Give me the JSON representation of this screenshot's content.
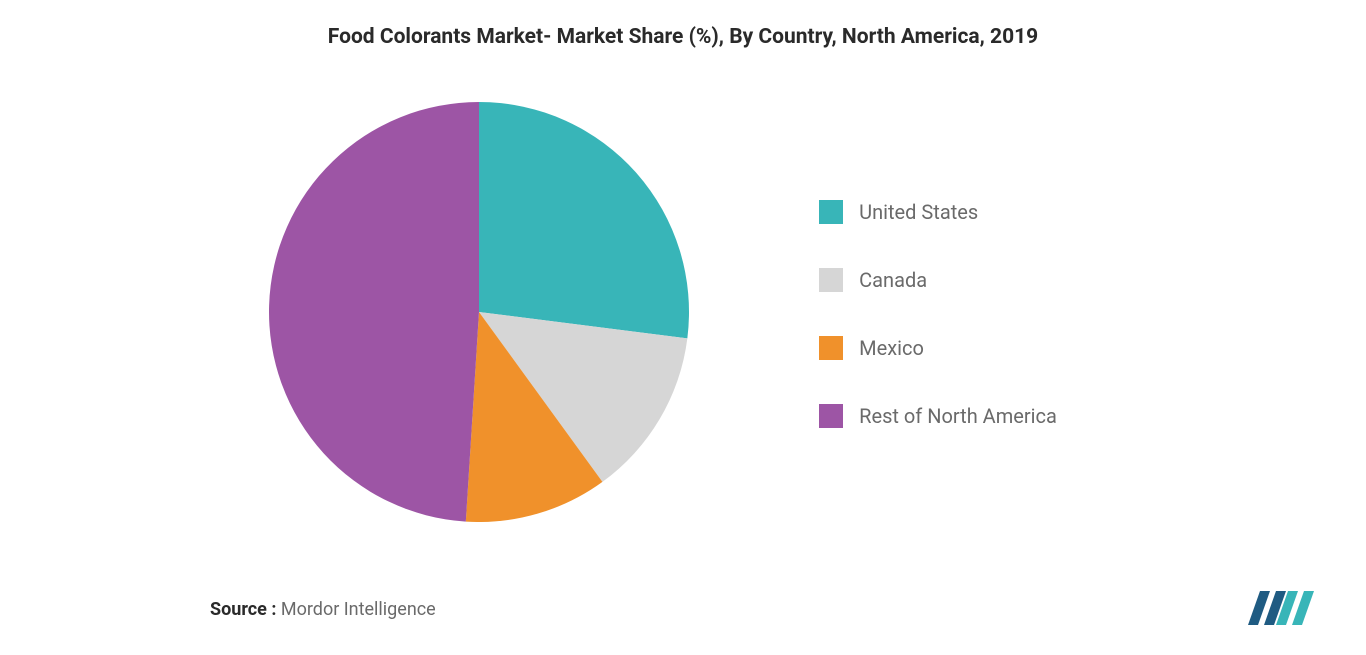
{
  "chart": {
    "type": "pie",
    "title": "Food Colorants Market- Market Share (%), By Country, North America, 2019",
    "title_fontsize": 21,
    "title_color": "#2a2a2a",
    "background_color": "#ffffff",
    "pie_radius": 210,
    "slices": [
      {
        "label": "United States",
        "value": 27,
        "color": "#38b5b8"
      },
      {
        "label": "Canada",
        "value": 13,
        "color": "#d6d6d6"
      },
      {
        "label": "Mexico",
        "value": 11,
        "color": "#f0912b"
      },
      {
        "label": "Rest of North America",
        "value": 49,
        "color": "#9d55a5"
      }
    ],
    "legend_fontsize": 20,
    "legend_color": "#6a6a6a",
    "legend_swatch_size": 24
  },
  "source": {
    "label": "Source :",
    "value": "Mordor Intelligence"
  },
  "logo": {
    "bar_color_left": "#1f5b82",
    "bar_color_right": "#38b5b8"
  }
}
